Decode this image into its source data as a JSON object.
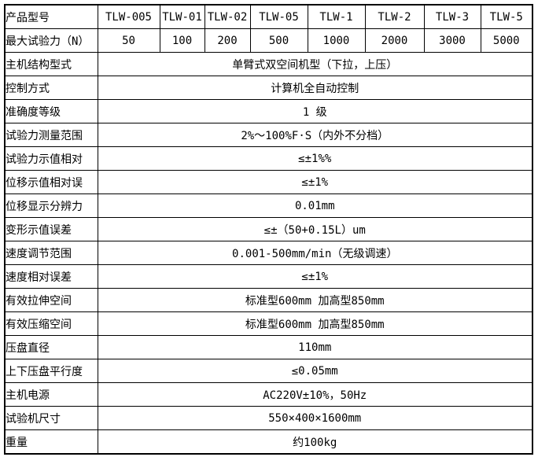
{
  "table": {
    "header_row": {
      "label": "产品型号",
      "models": [
        "TLW-005",
        "TLW-01",
        "TLW-02",
        "TLW-05",
        "TLW-1",
        "TLW-2",
        "TLW-3",
        "TLW-5"
      ]
    },
    "force_row": {
      "label": "最大试验力（N）",
      "values": [
        "50",
        "100",
        "200",
        "500",
        "1000",
        "2000",
        "3000",
        "5000"
      ]
    },
    "spec_rows": [
      {
        "label": "主机结构型式",
        "value": "单臂式双空间机型（下拉，上压）"
      },
      {
        "label": "控制方式",
        "value": "计算机全自动控制"
      },
      {
        "label": "准确度等级",
        "value": "1 级"
      },
      {
        "label": "试验力测量范围",
        "value": "2%～100%F·S（内外不分档）"
      },
      {
        "label": "试验力示值相对",
        "value": "≤±1%%"
      },
      {
        "label": "位移示值相对误",
        "value": "≤±1%"
      },
      {
        "label": "位移显示分辨力",
        "value": "0.01mm"
      },
      {
        "label": "变形示值误差",
        "value": "≤±（50+0.15L）um"
      },
      {
        "label": "速度调节范围",
        "value": "0.001-500mm/min（无级调速）"
      },
      {
        "label": "速度相对误差",
        "value": "≤±1%"
      },
      {
        "label": "有效拉伸空间",
        "value": "标准型600mm 加高型850mm"
      },
      {
        "label": "有效压缩空间",
        "value": "标准型600mm 加高型850mm"
      },
      {
        "label": "压盘直径",
        "value": "110mm"
      },
      {
        "label": "上下压盘平行度",
        "value": "≤0.05mm"
      },
      {
        "label": "主机电源",
        "value": "AC220V±10%，50Hz"
      },
      {
        "label": "试验机尺寸",
        "value": "550×400×1600mm"
      },
      {
        "label": "重量",
        "value": "约100kg"
      }
    ],
    "border_color": "#000000",
    "background_color": "#ffffff"
  }
}
